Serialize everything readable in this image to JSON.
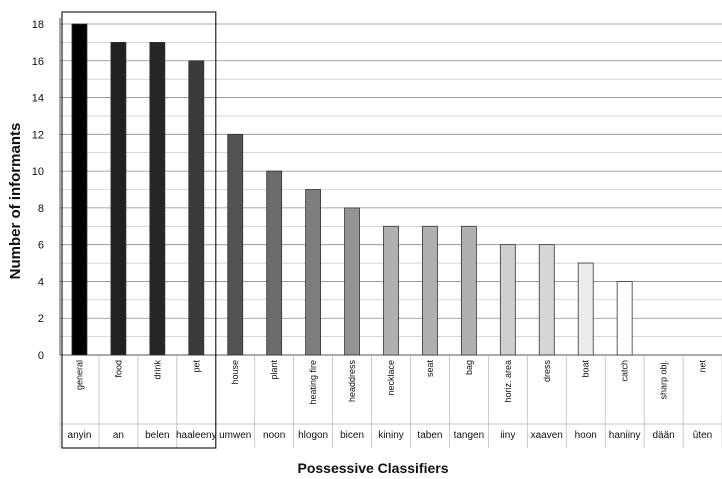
{
  "chart_data": {
    "type": "bar",
    "title": "",
    "ylabel": "Number of informants",
    "xlabel": "Possessive Classifiers",
    "ylim": [
      0,
      18
    ],
    "yticks": [
      0,
      2,
      4,
      6,
      8,
      10,
      12,
      14,
      16,
      18
    ],
    "grid": true,
    "categories": [
      "general",
      "food",
      "drink",
      "pet",
      "house",
      "plant",
      "heating fire",
      "headdress",
      "necklace",
      "seat",
      "bag",
      "horiz. area",
      "dress",
      "boat",
      "catch",
      "sharp obj.",
      "net"
    ],
    "forms": [
      "anyin",
      "an",
      "belen",
      "haaleeny",
      "umwen",
      "noon",
      "hlogon",
      "bicen",
      "kininy",
      "taben",
      "tangen",
      "iiny",
      "xaaven",
      "hoon",
      "haniiny",
      "dään",
      "ûten"
    ],
    "values": [
      18,
      17,
      17,
      16,
      12,
      10,
      9,
      8,
      7,
      7,
      7,
      6,
      6,
      5,
      4,
      0,
      0
    ],
    "bar_colors": [
      "#000000",
      "#222222",
      "#262626",
      "#3a3a3a",
      "#525252",
      "#6b6b6b",
      "#7e7e7e",
      "#939393",
      "#b0b0b0",
      "#b0b0b0",
      "#b0b0b0",
      "#cfcfcf",
      "#d6d6d6",
      "#ececec",
      "#ffffff",
      "#ffffff",
      "#ffffff"
    ],
    "highlight_box_categories": [
      "general",
      "food",
      "drink",
      "pet"
    ]
  }
}
